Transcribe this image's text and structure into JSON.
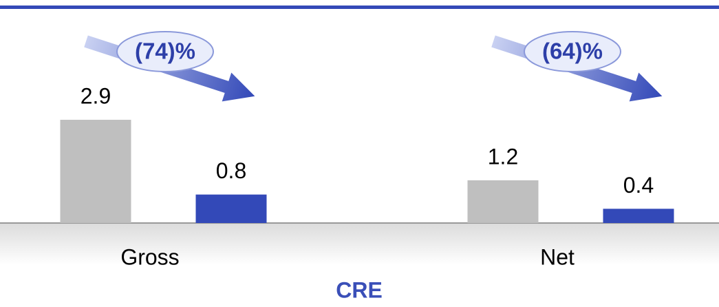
{
  "chart_data": {
    "type": "bar",
    "categories": [
      "Gross",
      "Net"
    ],
    "series": [
      {
        "color": "#bfbfbf",
        "values": [
          2.9,
          1.2
        ]
      },
      {
        "color": "#3349b8",
        "values": [
          0.8,
          0.4
        ]
      }
    ],
    "annotations": [
      "(74)%",
      "(64)%"
    ],
    "x_label": "CRE"
  }
}
